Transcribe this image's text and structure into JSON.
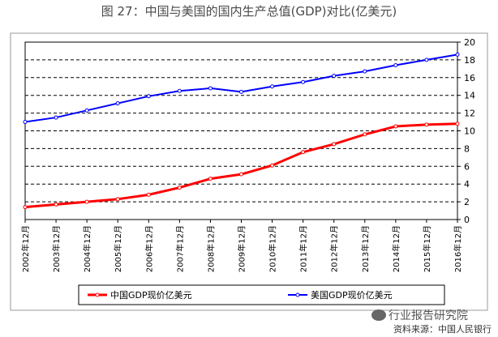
{
  "title": "图 27：中国与美国的国内生产总值(GDP)对比(亿美元)",
  "watermark": "行业报告研究院",
  "source": "资料来源：中国人民银行",
  "chart_data": {
    "type": "line",
    "x": [
      "2002年12月",
      "2003年12月",
      "2004年12月",
      "2005年12月",
      "2006年12月",
      "2007年12月",
      "2008年12月",
      "2009年12月",
      "2010年12月",
      "2011年12月",
      "2012年12月",
      "2013年12月",
      "2014年12月",
      "2015年12月",
      "2016年12月"
    ],
    "series": [
      {
        "name": "中国GDP现价亿美元",
        "color": "#ff0000",
        "values": [
          1.4,
          1.7,
          2.0,
          2.3,
          2.8,
          3.6,
          4.6,
          5.1,
          6.1,
          7.6,
          8.5,
          9.6,
          10.5,
          10.7,
          10.8
        ]
      },
      {
        "name": "美国GDP现价亿美元",
        "color": "#0000ff",
        "values": [
          11.0,
          11.5,
          12.3,
          13.1,
          13.9,
          14.5,
          14.8,
          14.4,
          15.0,
          15.5,
          16.2,
          16.7,
          17.4,
          18.0,
          18.6
        ]
      }
    ],
    "ylim": [
      0,
      20
    ],
    "yticks": [
      0,
      2,
      4,
      6,
      8,
      10,
      12,
      14,
      16,
      18,
      20
    ],
    "y_axis_side": "right",
    "grid": "horizontal-dashed",
    "legend_position": "bottom"
  }
}
